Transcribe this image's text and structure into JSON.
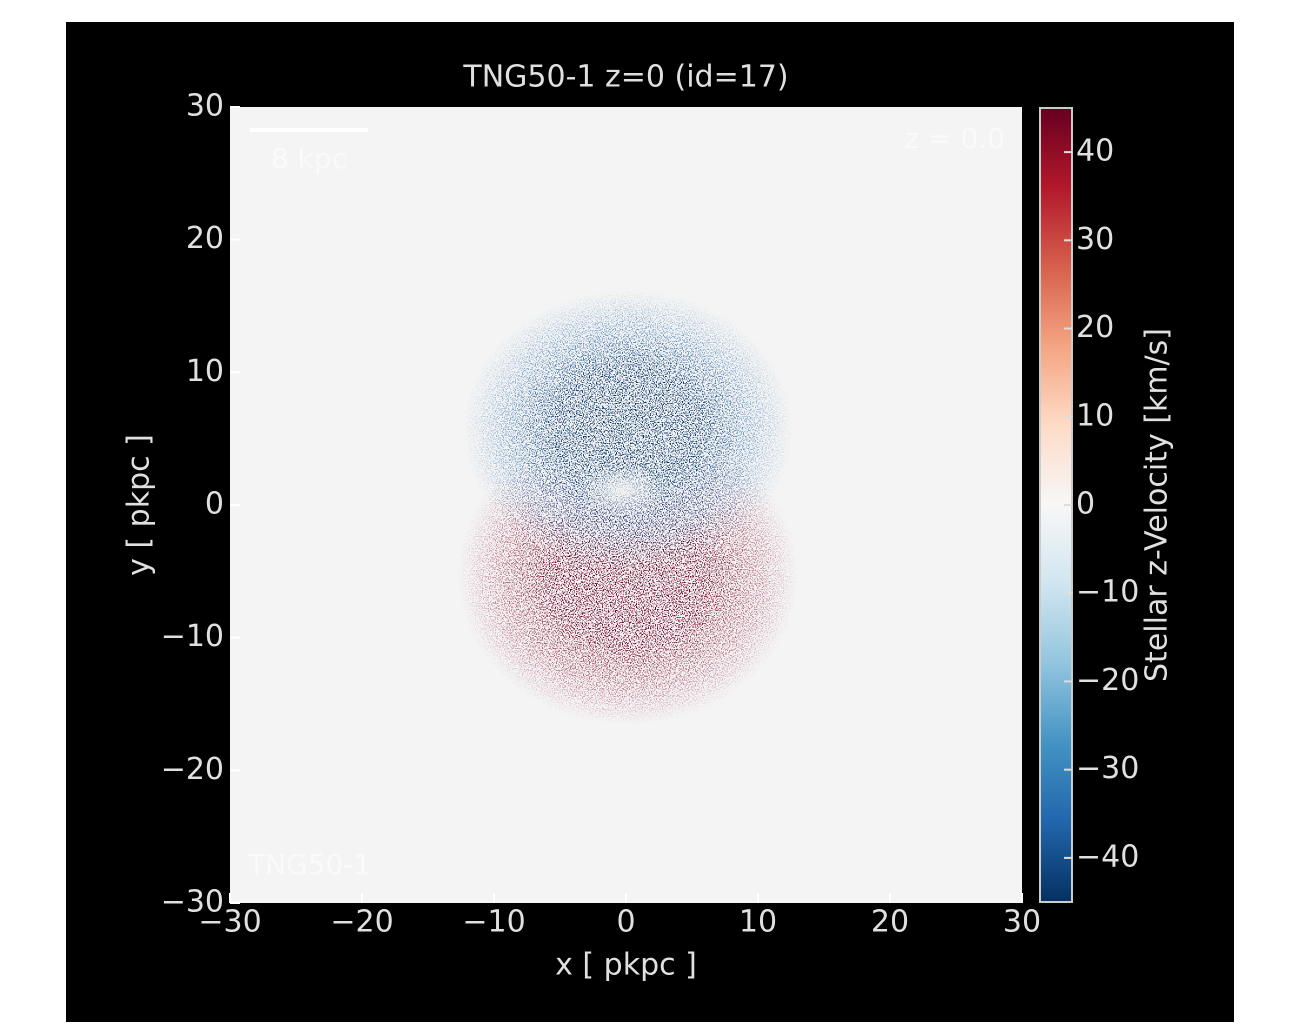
{
  "chart_data": {
    "type": "image",
    "title": "TNG50-1 z=0 (id=17)",
    "x_label": "x [ pkpc ]",
    "y_label": "y [ pkpc ]",
    "xlim": [
      -30,
      30
    ],
    "ylim": [
      -30,
      30
    ],
    "xticks": [
      {
        "value": -30,
        "label": "−30"
      },
      {
        "value": -20,
        "label": "−20"
      },
      {
        "value": -10,
        "label": "−10"
      },
      0,
      10,
      20,
      30
    ],
    "yticks": [
      {
        "value": -30,
        "label": "−30"
      },
      {
        "value": -20,
        "label": "−20"
      },
      {
        "value": -10,
        "label": "−10"
      },
      0,
      10,
      20,
      30
    ],
    "colorbar": {
      "label": "Stellar z-Velocity [km/s]",
      "lim": [
        -45,
        45
      ],
      "ticks": [
        {
          "value": -40,
          "label": "−40"
        },
        {
          "value": -30,
          "label": "−30"
        },
        {
          "value": -20,
          "label": "−20"
        },
        {
          "value": -10,
          "label": "−10"
        },
        0,
        10,
        20,
        30,
        40
      ],
      "colors": [
        "#053061",
        "#2166ac",
        "#4393c3",
        "#92c5de",
        "#d1e5f0",
        "#f7f7f7",
        "#fddbc7",
        "#f4a582",
        "#d6604d",
        "#b2182b",
        "#67001f"
      ]
    },
    "annotations": {
      "scale_bar": "8 kpc",
      "redshift": "z = 0.0",
      "simulation": "TNG50-1"
    }
  }
}
